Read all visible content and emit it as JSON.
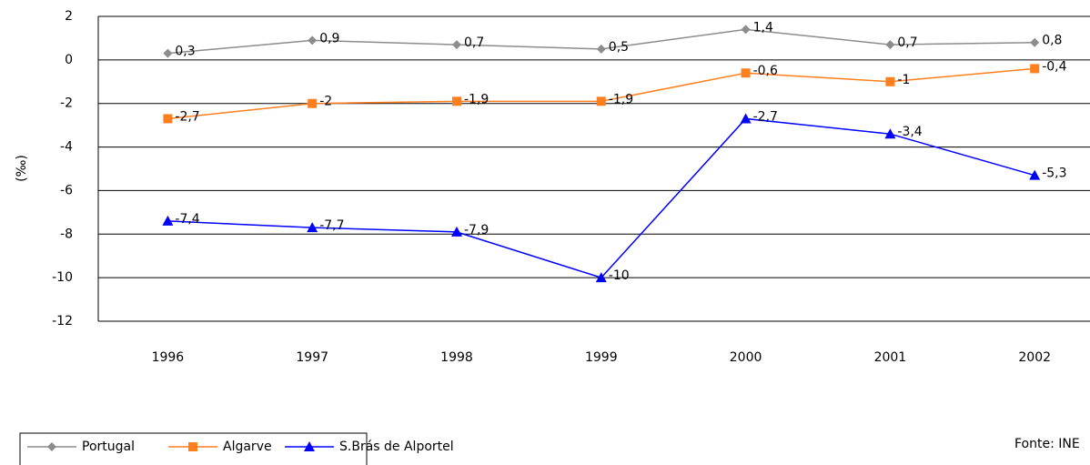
{
  "chart_data": {
    "type": "line",
    "y_label": "(‰)",
    "source": "Fonte: INE",
    "categories": [
      "1996",
      "1997",
      "1998",
      "1999",
      "2000",
      "2001",
      "2002"
    ],
    "series": [
      {
        "name": "Portugal",
        "color": "#8c8c8c",
        "marker": "diamond",
        "values": [
          0.3,
          0.9,
          0.7,
          0.5,
          1.4,
          0.7,
          0.8
        ],
        "value_labels": [
          "0,3",
          "0,9",
          "0,7",
          "0,5",
          "1,4",
          "0,7",
          "0,8"
        ]
      },
      {
        "name": "Algarve",
        "color": "#ff7f1f",
        "marker": "square",
        "values": [
          -2.7,
          -2,
          -1.9,
          -1.9,
          -0.6,
          -1,
          -0.4
        ],
        "value_labels": [
          "-2,7",
          "-2",
          "-1,9",
          "-1,9",
          "-0,6",
          "-1",
          "-0,4"
        ]
      },
      {
        "name": "S.Brás de Alportel",
        "color": "#0000ff",
        "marker": "triangle",
        "values": [
          -7.4,
          -7.7,
          -7.9,
          -10,
          -2.7,
          -3.4,
          -5.3
        ],
        "value_labels": [
          "-7,4",
          "-7,7",
          "-7,9",
          "-10",
          "-2,7",
          "-3,4",
          "-5,3"
        ]
      }
    ],
    "ylim": [
      -12,
      2
    ],
    "yticks": [
      2,
      0,
      -2,
      -4,
      -6,
      -8,
      -10,
      -12
    ],
    "grid": true,
    "legend": "bottom-left"
  }
}
